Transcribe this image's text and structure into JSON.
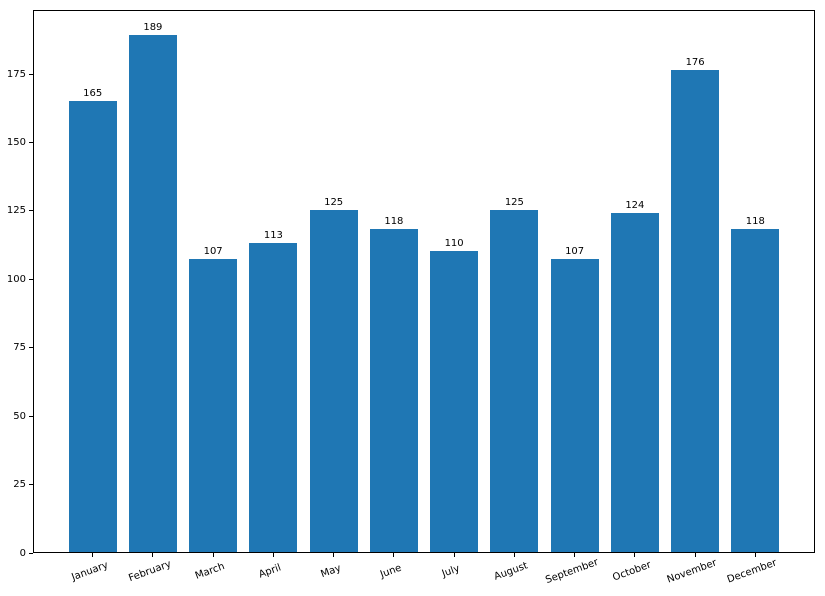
{
  "chart_data": {
    "type": "bar",
    "title": "",
    "xlabel": "",
    "ylabel": "",
    "categories": [
      "January",
      "February",
      "March",
      "April",
      "May",
      "June",
      "July",
      "August",
      "September",
      "October",
      "November",
      "December"
    ],
    "values": [
      165,
      189,
      107,
      113,
      125,
      118,
      110,
      125,
      107,
      124,
      176,
      118
    ],
    "bar_value_labels": [
      "165",
      "189",
      "107",
      "113",
      "125",
      "118",
      "110",
      "125",
      "107",
      "124",
      "176",
      "118"
    ],
    "yticks": [
      0,
      25,
      50,
      75,
      100,
      125,
      150,
      175
    ],
    "ylim": [
      0,
      198.45
    ],
    "bar_relative_width": 0.8,
    "x_tick_rotation_deg": 20,
    "grid": false,
    "legend": null,
    "colors": {
      "bar": "#1f77b4",
      "axis": "#000000",
      "text": "#000000",
      "background": "#ffffff"
    }
  }
}
